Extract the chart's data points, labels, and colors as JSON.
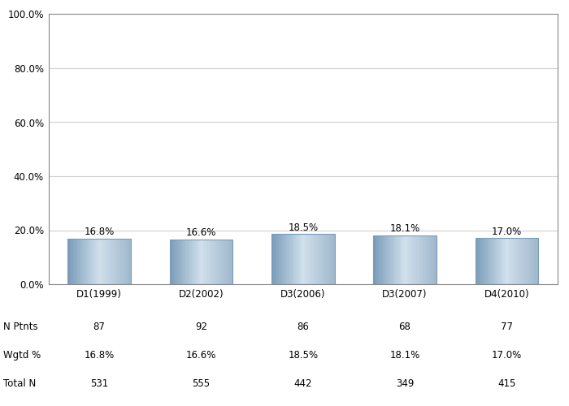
{
  "categories": [
    "D1(1999)",
    "D2(2002)",
    "D3(2006)",
    "D3(2007)",
    "D4(2010)"
  ],
  "values": [
    16.8,
    16.6,
    18.5,
    18.1,
    17.0
  ],
  "value_labels": [
    "16.8%",
    "16.6%",
    "18.5%",
    "18.1%",
    "17.0%"
  ],
  "n_ptnts": [
    "87",
    "92",
    "86",
    "68",
    "77"
  ],
  "wgtd_pct": [
    "16.8%",
    "16.6%",
    "18.5%",
    "18.1%",
    "17.0%"
  ],
  "total_n": [
    "531",
    "555",
    "442",
    "349",
    "415"
  ],
  "ylim": [
    0,
    100
  ],
  "yticks": [
    0,
    20,
    40,
    60,
    80,
    100
  ],
  "ytick_labels": [
    "0.0%",
    "20.0%",
    "40.0%",
    "60.0%",
    "80.0%",
    "100.0%"
  ],
  "grid_color": "#d0d0d0",
  "background_color": "#ffffff",
  "label_fontsize": 8.5,
  "tick_fontsize": 8.5,
  "table_fontsize": 8.5,
  "row_labels": [
    "N Ptnts",
    "Wgtd %",
    "Total N"
  ],
  "bar_left_color": "#7a9cb8",
  "bar_mid_color": "#d0e0ec",
  "bar_right_color": "#a0b8cc",
  "spine_color": "#888888"
}
